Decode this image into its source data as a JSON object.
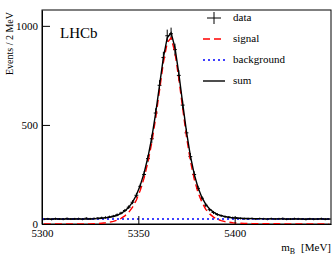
{
  "chart_data": {
    "type": "scatter",
    "annotation": "LHCb",
    "y_label": "Events / 2 MeV",
    "x_label": {
      "text": "m",
      "subscript": "B",
      "unit": "[MeV]"
    },
    "xlim": [
      5300,
      5450
    ],
    "xticks": [
      5300,
      5350,
      5400
    ],
    "ylim": [
      0,
      1080
    ],
    "yticks": [
      0,
      500,
      1000
    ],
    "legend": "upper right",
    "grid": false,
    "x": [
      5301,
      5303,
      5305,
      5307,
      5309,
      5311,
      5313,
      5315,
      5317,
      5319,
      5321,
      5323,
      5325,
      5327,
      5329,
      5331,
      5333,
      5335,
      5337,
      5339,
      5341,
      5343,
      5345,
      5347,
      5349,
      5351,
      5353,
      5355,
      5357,
      5359,
      5361,
      5363,
      5365,
      5367,
      5369,
      5371,
      5373,
      5375,
      5377,
      5379,
      5381,
      5383,
      5385,
      5387,
      5389,
      5391,
      5393,
      5395,
      5397,
      5399,
      5401,
      5403,
      5405,
      5407,
      5409,
      5411,
      5413,
      5415,
      5417,
      5419,
      5421,
      5423,
      5425,
      5427,
      5429,
      5431,
      5433,
      5435,
      5437,
      5439,
      5441,
      5443,
      5445,
      5447,
      5449
    ],
    "series": [
      {
        "name": "data",
        "type": "scatter",
        "marker": "cross",
        "color": "#000000",
        "values": [
          24,
          26,
          23,
          27,
          25,
          24,
          28,
          25,
          26,
          27,
          24,
          29,
          26,
          28,
          30,
          31,
          33,
          36,
          40,
          46,
          55,
          68,
          85,
          110,
          145,
          190,
          250,
          330,
          430,
          560,
          700,
          840,
          950,
          960,
          880,
          750,
          600,
          460,
          340,
          250,
          180,
          130,
          95,
          72,
          58,
          48,
          42,
          37,
          34,
          31,
          30,
          28,
          27,
          26,
          28,
          25,
          27,
          26,
          24,
          27,
          25,
          26,
          28,
          24,
          25,
          27,
          26,
          25,
          23,
          26,
          24,
          25,
          27,
          24,
          25
        ],
        "errors": [
          5,
          5,
          5,
          5,
          5,
          5,
          5,
          5,
          5,
          5,
          5,
          5,
          5,
          5,
          5,
          6,
          6,
          6,
          6,
          7,
          7,
          8,
          9,
          10,
          12,
          14,
          16,
          18,
          21,
          24,
          26,
          29,
          31,
          31,
          30,
          27,
          24,
          21,
          18,
          16,
          13,
          11,
          10,
          8,
          8,
          7,
          6,
          6,
          6,
          6,
          5,
          5,
          5,
          5,
          5,
          5,
          5,
          5,
          5,
          5,
          5,
          5,
          5,
          5,
          5,
          5,
          5,
          5,
          5,
          5,
          5,
          5,
          5,
          5,
          5
        ]
      },
      {
        "name": "signal",
        "type": "line",
        "line_style": "dashed",
        "color": "#ff0000",
        "values": [
          0,
          0,
          0,
          0,
          0,
          0,
          0,
          0,
          0,
          0,
          0,
          0,
          0,
          1,
          2,
          4,
          6,
          9,
          13,
          19,
          28,
          41,
          59,
          85,
          121,
          170,
          233,
          313,
          412,
          535,
          675,
          815,
          915,
          940,
          865,
          735,
          585,
          440,
          320,
          227,
          158,
          109,
          74,
          51,
          35,
          24,
          17,
          12,
          9,
          6,
          5,
          4,
          3,
          3,
          2,
          2,
          2,
          1,
          1,
          1,
          1,
          1,
          0,
          0,
          0,
          0,
          0,
          0,
          0,
          0,
          0,
          0,
          0,
          0,
          0
        ]
      },
      {
        "name": "background",
        "type": "line",
        "line_style": "dotted",
        "color": "#0000ff",
        "x": [
          5300,
          5450
        ],
        "values": [
          25,
          25
        ]
      },
      {
        "name": "sum",
        "type": "line",
        "line_style": "solid",
        "color": "#000000",
        "values": [
          25,
          25,
          25,
          25,
          25,
          25,
          25,
          25,
          25,
          25,
          25,
          25,
          25,
          26,
          27,
          29,
          31,
          34,
          38,
          44,
          53,
          66,
          84,
          110,
          146,
          195,
          258,
          338,
          437,
          560,
          700,
          840,
          940,
          965,
          890,
          760,
          610,
          465,
          345,
          252,
          183,
          134,
          99,
          76,
          60,
          49,
          42,
          37,
          34,
          31,
          30,
          29,
          28,
          28,
          27,
          27,
          27,
          26,
          26,
          26,
          26,
          26,
          25,
          25,
          25,
          25,
          25,
          25,
          25,
          25,
          25,
          25,
          25,
          25,
          25
        ]
      }
    ]
  }
}
